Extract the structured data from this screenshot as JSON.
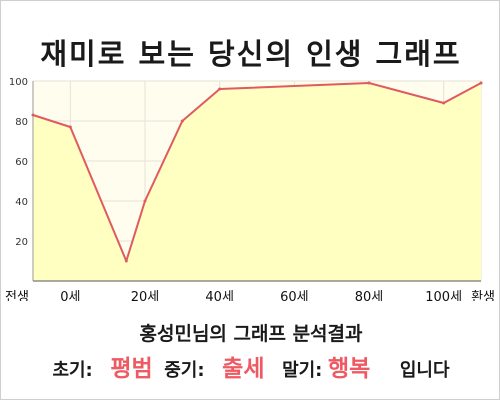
{
  "title": "재미로 보는 당신의 인생 그래프",
  "subtitle": "홍성민님의 그래프 분석결과",
  "result": {
    "early_label": "초기:",
    "early_value": "평범",
    "mid_label": "중기:",
    "mid_value": "출세",
    "late_label": "말기:",
    "late_value": "행복",
    "suffix": "입니다"
  },
  "colors": {
    "line": "#e05a5f",
    "fill": "#ffffc2",
    "plot_background": "#fffdee",
    "grid": "#e3e3d6",
    "accent_text": "#ee5a63"
  },
  "chart_data": {
    "type": "area",
    "title": "재미로 보는 당신의 인생 그래프",
    "xlabel": "",
    "ylabel": "",
    "ylim": [
      0,
      100
    ],
    "y_ticks": [
      20,
      40,
      60,
      80,
      100
    ],
    "x_ticks": [
      {
        "label": "전생",
        "x": -10
      },
      {
        "label": "0세",
        "x": 0
      },
      {
        "label": "20세",
        "x": 20
      },
      {
        "label": "40세",
        "x": 40
      },
      {
        "label": "60세",
        "x": 60
      },
      {
        "label": "80세",
        "x": 80
      },
      {
        "label": "100세",
        "x": 100
      },
      {
        "label": "환생",
        "x": 110
      }
    ],
    "xlim": [
      -10,
      110
    ],
    "series": [
      {
        "x": [
          -10,
          0,
          15,
          20,
          30,
          40,
          80,
          100,
          110
        ],
        "values": [
          83,
          77,
          10,
          40,
          80,
          96,
          99,
          89,
          99
        ]
      }
    ],
    "grid": true,
    "legend": "none"
  }
}
